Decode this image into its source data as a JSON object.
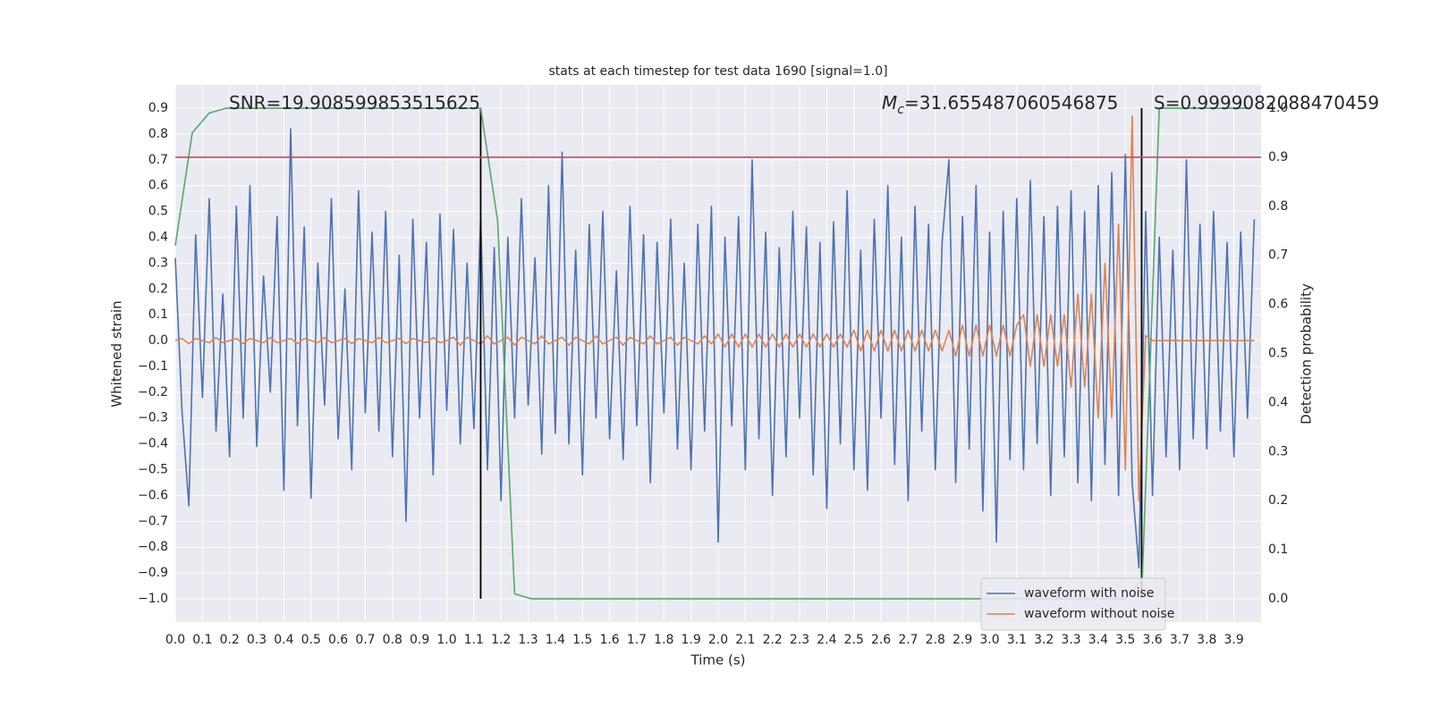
{
  "chart_data": {
    "type": "line",
    "title": "stats at each timestep for test data 1690 [signal=1.0]",
    "xlabel": "Time (s)",
    "ylabel": "Whitened strain",
    "y2label": "Detection probability",
    "xlim": [
      0,
      4.0
    ],
    "ylim": [
      -1.09,
      0.99
    ],
    "y2lim": [
      -0.0474,
      1.0474
    ],
    "xticks": [
      {
        "value": 0,
        "label": "0.0"
      },
      0.1,
      0.2,
      0.3,
      0.4,
      0.5,
      0.6,
      0.7,
      0.8,
      0.9,
      {
        "value": 1,
        "label": "1.0"
      },
      1.1,
      1.2,
      1.3,
      1.4,
      1.5,
      1.6,
      1.7,
      1.8,
      1.9,
      {
        "value": 2,
        "label": "2.0"
      },
      2.1,
      2.2,
      2.3,
      2.4,
      2.5,
      2.6,
      2.7,
      2.8,
      2.9,
      {
        "value": 3,
        "label": "3.0"
      },
      3.1,
      3.2,
      3.3,
      3.4,
      3.5,
      3.6,
      3.7,
      3.8,
      3.9
    ],
    "yticks": [
      {
        "value": -1,
        "label": "−1.0"
      },
      {
        "value": -0.9,
        "label": "−0.9"
      },
      {
        "value": -0.8,
        "label": "−0.8"
      },
      {
        "value": -0.7,
        "label": "−0.7"
      },
      {
        "value": -0.6,
        "label": "−0.6"
      },
      {
        "value": -0.5,
        "label": "−0.5"
      },
      {
        "value": -0.4,
        "label": "−0.4"
      },
      {
        "value": -0.3,
        "label": "−0.3"
      },
      {
        "value": -0.2,
        "label": "−0.2"
      },
      {
        "value": -0.1,
        "label": "−0.1"
      },
      {
        "value": 0,
        "label": "0.0"
      },
      0.1,
      0.2,
      0.3,
      0.4,
      0.5,
      0.6,
      0.7,
      0.8,
      0.9
    ],
    "y2ticks": [
      {
        "value": 0,
        "label": "0.0"
      },
      0.1,
      0.2,
      0.3,
      0.4,
      0.5,
      0.6,
      0.7,
      0.8,
      0.9,
      {
        "value": 1,
        "label": "1.0"
      }
    ],
    "grid": true,
    "legend": "lower right",
    "x": [
      0,
      0.025,
      0.05,
      0.075,
      0.1,
      0.125,
      0.15,
      0.175,
      0.2,
      0.225,
      0.25,
      0.275,
      0.3,
      0.325,
      0.35,
      0.375,
      0.4,
      0.425,
      0.45,
      0.475,
      0.5,
      0.525,
      0.55,
      0.575,
      0.6,
      0.625,
      0.65,
      0.675,
      0.7,
      0.725,
      0.75,
      0.775,
      0.8,
      0.825,
      0.85,
      0.875,
      0.9,
      0.925,
      0.95,
      0.975,
      1,
      1.025,
      1.05,
      1.075,
      1.1,
      1.125,
      1.15,
      1.175,
      1.2,
      1.225,
      1.25,
      1.275,
      1.3,
      1.325,
      1.35,
      1.375,
      1.4,
      1.425,
      1.45,
      1.475,
      1.5,
      1.525,
      1.55,
      1.575,
      1.6,
      1.625,
      1.65,
      1.675,
      1.7,
      1.725,
      1.75,
      1.775,
      1.8,
      1.825,
      1.85,
      1.875,
      1.9,
      1.925,
      1.95,
      1.975,
      2,
      2.025,
      2.05,
      2.075,
      2.1,
      2.125,
      2.15,
      2.175,
      2.2,
      2.225,
      2.25,
      2.275,
      2.3,
      2.325,
      2.35,
      2.375,
      2.4,
      2.425,
      2.45,
      2.475,
      2.5,
      2.525,
      2.55,
      2.575,
      2.6,
      2.625,
      2.65,
      2.675,
      2.7,
      2.725,
      2.75,
      2.775,
      2.8,
      2.825,
      2.85,
      2.875,
      2.9,
      2.925,
      2.95,
      2.975,
      3,
      3.025,
      3.05,
      3.075,
      3.1,
      3.125,
      3.15,
      3.175,
      3.2,
      3.225,
      3.25,
      3.275,
      3.3,
      3.325,
      3.35,
      3.375,
      3.4,
      3.425,
      3.45,
      3.475,
      3.5,
      3.525,
      3.55,
      3.575,
      3.6,
      3.625,
      3.65,
      3.675,
      3.7,
      3.725,
      3.75,
      3.775,
      3.8,
      3.825,
      3.85,
      3.875,
      3.9,
      3.925,
      3.95,
      3.975
    ],
    "series": [
      {
        "name": "waveform with noise",
        "color": "#4c72b0",
        "values": [
          0.32,
          -0.28,
          -0.64,
          0.41,
          -0.22,
          0.55,
          -0.35,
          0.18,
          -0.45,
          0.52,
          -0.3,
          0.6,
          -0.41,
          0.25,
          -0.2,
          0.48,
          -0.58,
          0.82,
          -0.33,
          0.44,
          -0.61,
          0.3,
          -0.25,
          0.55,
          -0.38,
          0.2,
          -0.5,
          0.58,
          -0.28,
          0.42,
          -0.35,
          0.5,
          -0.45,
          0.33,
          -0.7,
          0.47,
          -0.3,
          0.38,
          -0.52,
          0.49,
          -0.27,
          0.43,
          -0.4,
          0.3,
          -0.34,
          0.48,
          -0.5,
          0.36,
          -0.62,
          0.4,
          -0.3,
          0.55,
          -0.25,
          0.32,
          -0.44,
          0.6,
          -0.36,
          0.73,
          -0.4,
          0.35,
          -0.52,
          0.45,
          -0.3,
          0.5,
          -0.38,
          0.27,
          -0.46,
          0.52,
          -0.33,
          0.41,
          -0.55,
          0.38,
          -0.28,
          0.47,
          -0.42,
          0.3,
          -0.5,
          0.45,
          -0.35,
          0.52,
          -0.78,
          0.4,
          -0.33,
          0.48,
          -0.5,
          0.7,
          -0.38,
          0.42,
          -0.6,
          0.36,
          -0.45,
          0.5,
          -0.3,
          0.44,
          -0.52,
          0.38,
          -0.65,
          0.46,
          -0.4,
          0.58,
          -0.5,
          0.35,
          -0.58,
          0.47,
          -0.3,
          0.6,
          -0.48,
          0.4,
          -0.62,
          0.52,
          -0.35,
          0.45,
          -0.5,
          0.38,
          0.7,
          -0.55,
          0.48,
          -0.42,
          0.6,
          -0.66,
          0.42,
          -0.78,
          0.5,
          -0.46,
          0.55,
          -0.5,
          0.62,
          -0.4,
          0.48,
          -0.6,
          0.52,
          -0.45,
          0.58,
          -0.55,
          0.5,
          -0.62,
          0.6,
          -0.48,
          0.65,
          -0.6,
          0.72,
          -0.55,
          -0.88,
          0.5,
          -0.6,
          0.4,
          -0.45,
          0.35,
          -0.5,
          0.7,
          -0.38,
          0.45,
          -0.42,
          0.5,
          -0.35,
          0.38,
          -0.45,
          0.42,
          -0.3,
          0.47
        ]
      },
      {
        "name": "waveform without noise",
        "color": "#dd8452",
        "values": [
          0,
          0.008,
          -0.012,
          0.008,
          0,
          -0.008,
          0.012,
          -0.008,
          0,
          0.008,
          -0.012,
          0.008,
          0,
          -0.008,
          0.012,
          -0.008,
          0,
          0.008,
          -0.012,
          0.008,
          0,
          -0.008,
          0.012,
          -0.008,
          0,
          0.008,
          -0.012,
          0.008,
          0,
          -0.008,
          0.012,
          -0.008,
          0,
          0.008,
          -0.012,
          0.008,
          0,
          -0.008,
          0.012,
          -0.008,
          0,
          0.013,
          -0.018,
          0.013,
          0,
          -0.013,
          0.018,
          -0.013,
          0,
          0.013,
          -0.018,
          0.013,
          0,
          -0.013,
          0.018,
          -0.013,
          0,
          0.013,
          -0.018,
          0.013,
          0,
          -0.013,
          0.018,
          -0.013,
          0,
          0.013,
          -0.018,
          0.013,
          0,
          -0.013,
          0.018,
          -0.013,
          0,
          0.013,
          -0.018,
          0.013,
          0,
          -0.013,
          0.018,
          -0.013,
          0.025,
          -0.025,
          0.025,
          -0.025,
          0.025,
          -0.025,
          0.025,
          -0.025,
          0.025,
          -0.025,
          0.025,
          -0.025,
          0.025,
          -0.025,
          0.025,
          -0.025,
          0.025,
          -0.025,
          0.025,
          -0.025,
          0.04,
          -0.04,
          0.04,
          -0.04,
          0.04,
          -0.04,
          0.04,
          -0.04,
          0.04,
          -0.04,
          0.04,
          -0.04,
          0.04,
          -0.04,
          0.04,
          -0.06,
          0.06,
          -0.06,
          0.06,
          -0.06,
          0.06,
          -0.06,
          0.06,
          -0.06,
          0.06,
          0.1,
          -0.1,
          0.1,
          -0.1,
          0.1,
          -0.1,
          0.1,
          -0.18,
          0.18,
          -0.18,
          0.18,
          -0.3,
          0.3,
          -0.3,
          0.45,
          -0.5,
          0.87,
          -0.62,
          0.02,
          0,
          0,
          0,
          0,
          0,
          0,
          0,
          0,
          0,
          0,
          0,
          0,
          0,
          0,
          0,
          0
        ]
      },
      {
        "color": "#55a868",
        "axis": "y2",
        "x": [
          0,
          0.0625,
          0.125,
          0.1875,
          0.25,
          0.5,
          1.0,
          1.125,
          1.1875,
          1.25,
          1.3125,
          2.0,
          3.0,
          3.5,
          3.5625,
          3.625,
          3.75,
          3.96
        ],
        "values": [
          0.72,
          0.95,
          0.99,
          1.0,
          1.0,
          1.0,
          1.0,
          1.0,
          0.77,
          0.01,
          0.0,
          0.0,
          0.0,
          0.0,
          0.04,
          1.0,
          1.0,
          1.0
        ]
      }
    ],
    "hlines": [
      {
        "value": 0.9,
        "axis": "y2",
        "color": "#c44e52"
      }
    ],
    "vlines": [
      {
        "value": 1.125,
        "ymin": -1.0,
        "ymax": 0.9,
        "color": "#000000"
      },
      {
        "value": 3.56,
        "ymin": -1.0,
        "ymax": 0.9,
        "color": "#000000"
      }
    ],
    "annotations": [
      {
        "text": "SNR=19.908599853515625"
      },
      {
        "symbol": "M",
        "subscript": "c",
        "text": "=31.655487060546875"
      },
      {
        "text": "S=0.9999082088470459"
      }
    ]
  }
}
